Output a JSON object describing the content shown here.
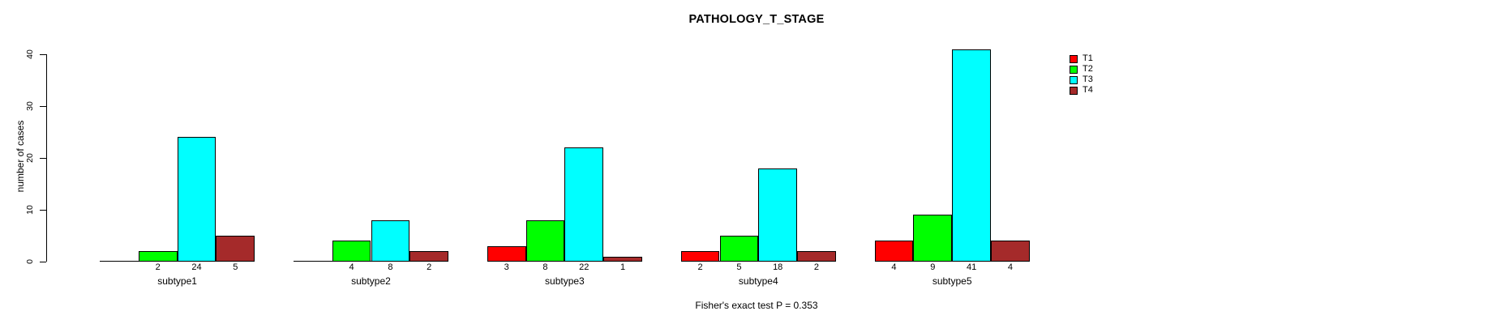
{
  "title": "PATHOLOGY_T_STAGE",
  "footer": {
    "annotation": "Fisher's exact test P = 0.353"
  },
  "chart_data": {
    "type": "bar",
    "title": "PATHOLOGY_T_STAGE",
    "xlabel": "",
    "ylabel": "number of cases",
    "ylim": [
      0,
      40
    ],
    "yticks": [
      "0",
      "10",
      "20",
      "30",
      "40"
    ],
    "grid": false,
    "legend_position": "top-right",
    "categories": [
      "subtype1",
      "subtype2",
      "subtype3",
      "subtype4",
      "subtype5"
    ],
    "series": [
      {
        "name": "T1",
        "color": "#FF0000",
        "values": [
          0,
          0,
          3,
          2,
          4
        ]
      },
      {
        "name": "T2",
        "color": "#00FF00",
        "values": [
          2,
          4,
          8,
          5,
          9
        ]
      },
      {
        "name": "T3",
        "color": "#00FFFF",
        "values": [
          24,
          8,
          22,
          18,
          41
        ]
      },
      {
        "name": "T4",
        "color": "#A52A2A",
        "values": [
          5,
          2,
          1,
          2,
          4
        ]
      }
    ],
    "bar_value_labels": {
      "shown": true,
      "zeros_hidden": true,
      "per_category": [
        [
          "",
          "2",
          "24",
          "5"
        ],
        [
          "",
          "4",
          "8",
          "2"
        ],
        [
          "3",
          "8",
          "22",
          "1"
        ],
        [
          "2",
          "5",
          "18",
          "2"
        ],
        [
          "4",
          "9",
          "41",
          "4"
        ]
      ]
    },
    "annotation": "Fisher's exact test P = 0.353"
  }
}
